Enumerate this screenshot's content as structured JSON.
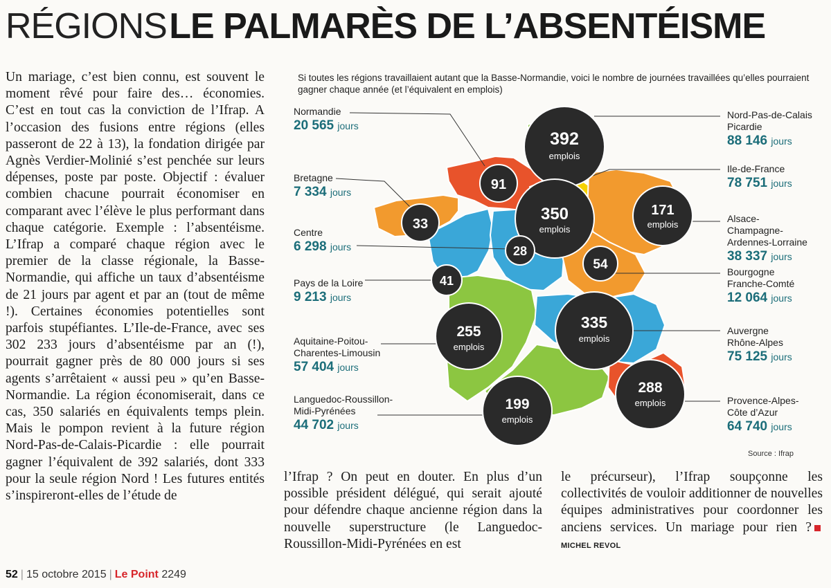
{
  "headline": {
    "kicker": "RÉGIONS",
    "title": "LE PALMARÈS DE L’ABSENTÉISME"
  },
  "article": {
    "col1": "Un mariage, c’est bien connu, est souvent le moment rêvé pour faire des… économies. C’est en tout cas la conviction de l’Ifrap. A l’occasion des fusions entre régions (elles passeront de 22 à 13), la fondation dirigée par Agnès Verdier-Molinié s’est penchée sur leurs dépenses, poste par poste. Objectif : évaluer combien chacune pourrait économiser en comparant avec l’élève le plus performant dans chaque catégorie. Exemple : l’absentéisme. L’Ifrap a comparé chaque région avec le premier de la classe régionale, la Basse-Normandie, qui affiche un taux d’absentéisme de 21 jours par agent et par an (tout de même !). Certaines économies potentielles sont parfois stupéfiantes. L’Ile-de-France, avec ses 302 233 jours d’absentéisme par an (!), pourrait gagner près de 80 000 jours si ses agents s’arrêtaient « aussi peu » qu’en Basse-Normandie. La région économiserait, dans ce cas, 350 salariés en équivalents temps plein. Mais le pompon revient à la future région Nord-Pas-de-Calais-Picardie : elle pourrait gagner l’équivalent de 392 salariés, dont 333 pour la seule région Nord ! Les futures entités s’inspireront-elles de l’étude de",
    "col2": "l’Ifrap ? On peut en douter. En plus d’un possible président délégué, qui serait ajouté pour défendre chaque ancienne région dans la nouvelle superstructure (le Languedoc-Roussillon-Midi-Pyrénées en est",
    "col3": "le précurseur), l’Ifrap soupçonne les collectivités de vouloir additionner de nouvelles équipes administratives pour coordonner les anciens services. Un mariage pour rien ?",
    "byline": "MICHEL REVOL"
  },
  "infographic": {
    "intro": "Si toutes les régions travaillaient autant que la Basse-Normandie, voici le nombre de journées travaillées qu’elles pourraient gagner chaque année (et l’équivalent en emplois)",
    "source": "Source : Ifrap",
    "day_unit": "jours",
    "job_unit": "emplois",
    "regions": [
      {
        "name": "Normandie",
        "days": "20 565",
        "jobs": "91"
      },
      {
        "name": "Bretagne",
        "days": "7 334",
        "jobs": "33"
      },
      {
        "name": "Centre",
        "days": "6 298",
        "jobs": "28"
      },
      {
        "name": "Pays de la Loire",
        "days": "9 213",
        "jobs": "41"
      },
      {
        "name": "Aquitaine-Poitou-Charentes-Limousin",
        "days": "57 404",
        "jobs": "255"
      },
      {
        "name": "Languedoc-Roussillon-Midi-Pyrénées",
        "days": "44 702",
        "jobs": "199"
      },
      {
        "name": "Nord-Pas-de-Calais Picardie",
        "days": "88 146",
        "jobs": "392"
      },
      {
        "name": "Ile-de-France",
        "days": "78 751",
        "jobs": "350"
      },
      {
        "name": "Alsace-Champagne-Ardennes-Lorraine",
        "days": "38 337",
        "jobs": "171"
      },
      {
        "name": "Bourgogne Franche-Comté",
        "days": "12 064",
        "jobs": "54"
      },
      {
        "name": "Auvergne Rhône-Alpes",
        "days": "75 125",
        "jobs": "335"
      },
      {
        "name": "Provence-Alpes-Côte d’Azur",
        "days": "64 740",
        "jobs": "288"
      }
    ],
    "region_colors": {
      "normandie": "#e8532b",
      "bretagne": "#f29a2e",
      "pays_loire": "#3aa7d8",
      "centre": "#3aa7d8",
      "nord_picardie": "#8cc641",
      "idf": "#f6d200",
      "acal": "#f29a2e",
      "bourgogne": "#f29a2e",
      "aquitaine": "#8cc641",
      "auvergne": "#3aa7d8",
      "languedoc": "#8cc641",
      "paca": "#e8532b"
    }
  },
  "footer": {
    "page": "52",
    "date": "15 octobre 2015",
    "magazine": "Le Point",
    "issue": "2249"
  }
}
